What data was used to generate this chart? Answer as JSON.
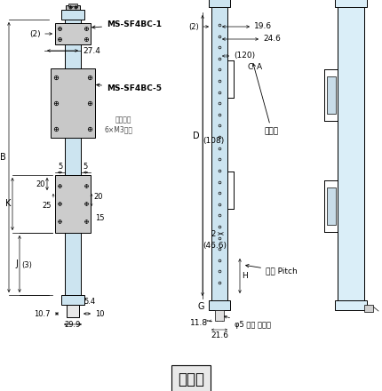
{
  "title": "투광기",
  "bg_color": "#ffffff",
  "light_blue": "#cce4f0",
  "light_blue2": "#daeef8",
  "gray_bracket": "#d0d0d0",
  "dark": "#000000",
  "labels": {
    "ms_sf4bc_1": "MS-SF4BC-1",
    "ms_sf4bc_5": "MS-SF4BC-5",
    "screw": "접시나사",
    "hole": "6×M3구멍",
    "dim_2_left": "(2)",
    "dim_27_4": "27.4",
    "dim_5_left": "5",
    "dim_5_right": "5",
    "dim_20_left": "20",
    "dim_20_right": "20",
    "dim_25": "25",
    "dim_15": "15",
    "dim_3": "(3)",
    "dim_5_4": "5.4",
    "dim_10_7": "10.7",
    "dim_10": "10",
    "dim_29_9": "29.9",
    "dim_B": "B",
    "dim_K": "K",
    "dim_J": "J",
    "dim_2_mid": "(2)",
    "dim_19_6": "19.6",
    "dim_24_6": "24.6",
    "dim_120": "(120)",
    "dim_108": "(108)",
    "dim_2_small": "2",
    "dim_46_6": "(46.6)",
    "dim_D": "D",
    "dim_G": "G",
    "dim_H": "H",
    "dim_C": "C",
    "dim_A": "A",
    "dim_11_8": "11.8",
    "dim_21_6": "21.6",
    "cable": "φ5 회색 케이블",
    "detection": "검출폭",
    "pitch": "광축 Pitch"
  }
}
